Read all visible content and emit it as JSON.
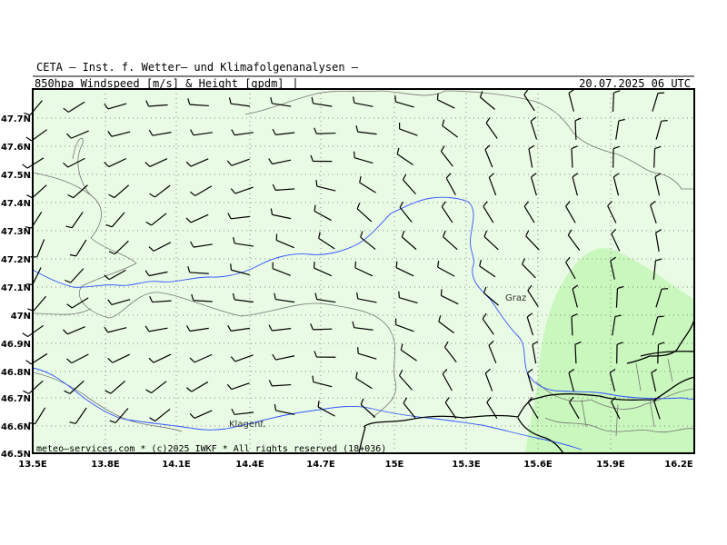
{
  "header": {
    "org": "CETA – Inst. f. Wetter– und Klimafolgenanalysen –",
    "parameter": "850hpa_Windspeed_[m/s]_&_Height_[gpdm]",
    "datetime": "20.07.2025 06 UTC"
  },
  "axes": {
    "x_ticks": [
      "13.5E",
      "13.8E",
      "14.1E",
      "14.4E",
      "14.7E",
      "15E",
      "15.3E",
      "15.6E",
      "15.9E",
      "16.2E"
    ],
    "y_ticks": [
      "47.7N",
      "47.6N",
      "47.5N",
      "47.4N",
      "47.3N",
      "47.2N",
      "47.1N",
      "47N",
      "46.9N",
      "46.8N",
      "46.7N",
      "46.6N",
      "46.5N"
    ]
  },
  "places": {
    "graz": "Graz",
    "klagenfurt": "Klagenf."
  },
  "footer": {
    "credit": "meteo–services.com * (c)2025 IWKF * All rights reserved (18+036)"
  },
  "colors": {
    "background": "#e9fbe4",
    "wind_band": "#c9f7bd",
    "river": "#3355ff",
    "border": "#000000",
    "grid": "#888888"
  }
}
